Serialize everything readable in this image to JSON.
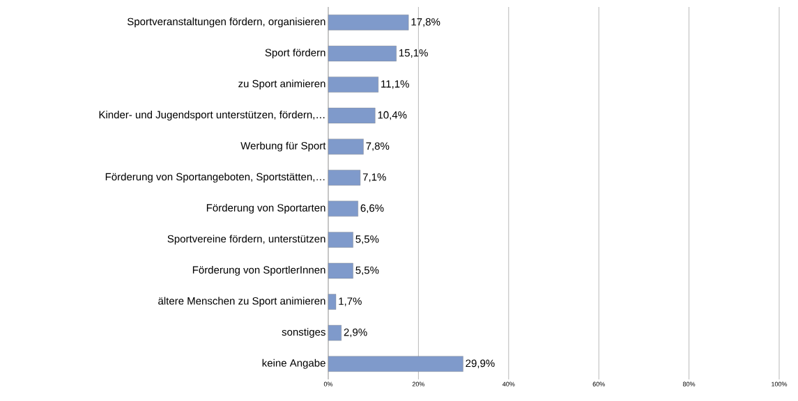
{
  "chart_data": {
    "type": "bar",
    "orientation": "horizontal",
    "categories": [
      "Sportveranstaltungen fördern, organisieren",
      "Sport fördern",
      "zu Sport animieren",
      "Kinder- und Jugendsport unterstützen, fördern,…",
      "Werbung für Sport",
      "Förderung von Sportangeboten, Sportstätten,…",
      "Förderung von Sportarten",
      "Sportvereine fördern, unterstützen",
      "Förderung von SportlerInnen",
      "ältere Menschen zu Sport animieren",
      "sonstiges",
      "keine Angabe"
    ],
    "values": [
      17.8,
      15.1,
      11.1,
      10.4,
      7.8,
      7.1,
      6.6,
      5.5,
      5.5,
      1.7,
      2.9,
      29.9
    ],
    "value_labels": [
      "17,8%",
      "15,1%",
      "11,1%",
      "10,4%",
      "7,8%",
      "7,1%",
      "6,6%",
      "5,5%",
      "5,5%",
      "1,7%",
      "2,9%",
      "29,9%"
    ],
    "color": "#7f9acb",
    "xlim": [
      0,
      100
    ],
    "xticks": [
      {
        "value": 0,
        "label": "0%"
      },
      {
        "value": 20,
        "label": "20%"
      },
      {
        "value": 40,
        "label": "40%"
      },
      {
        "value": 60,
        "label": "60%"
      },
      {
        "value": 80,
        "label": "80%"
      },
      {
        "value": 100,
        "label": "100%"
      }
    ],
    "grid": "x"
  }
}
